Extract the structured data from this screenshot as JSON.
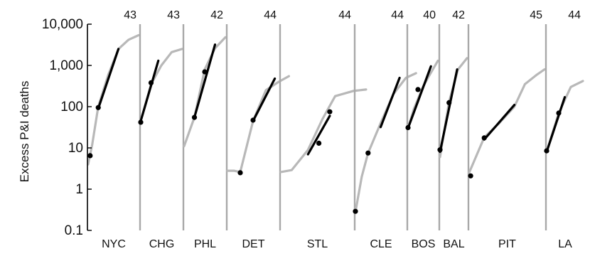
{
  "chart_data": {
    "type": "line",
    "title": "",
    "xlabel": "",
    "ylabel": "Excess P&I deaths",
    "y_scale": "log",
    "ylim": [
      0.1,
      10000
    ],
    "y_ticks": [
      0.1,
      1,
      10,
      100,
      1000,
      10000
    ],
    "y_tick_labels": [
      "0.1",
      "1",
      "10",
      "100",
      "1,000",
      "10,000"
    ],
    "grid": false,
    "legend": "none",
    "colors": {
      "epidemic_curve": "#b8b8b8",
      "fit_line": "#000000",
      "points": "#000000",
      "panel_divider": "#a8a8a8",
      "axis": "#000000"
    },
    "panels": [
      {
        "city": "NYC",
        "end_week": "43",
        "week_span": [
          38,
          43
        ],
        "curve": [
          [
            38,
            4
          ],
          [
            38.4,
            12
          ],
          [
            39,
            100
          ],
          [
            40,
            600
          ],
          [
            41,
            2500
          ],
          [
            42,
            4200
          ],
          [
            43,
            5400
          ]
        ],
        "fit": [
          [
            39,
            90
          ],
          [
            41,
            2500
          ]
        ],
        "points": [
          [
            38.2,
            6.5
          ],
          [
            39,
            95
          ]
        ]
      },
      {
        "city": "CHG",
        "end_week": "43",
        "week_span": [
          39,
          43
        ],
        "curve": [
          [
            39,
            45
          ],
          [
            40,
            350
          ],
          [
            41,
            1000
          ],
          [
            42,
            2100
          ],
          [
            43,
            2500
          ]
        ],
        "fit": [
          [
            39,
            45
          ],
          [
            40.7,
            1300
          ]
        ],
        "points": [
          [
            39,
            42
          ],
          [
            40,
            380
          ]
        ]
      },
      {
        "city": "PHL",
        "end_week": "42",
        "week_span": [
          38,
          42
        ],
        "curve": [
          [
            38,
            11
          ],
          [
            39,
            55
          ],
          [
            40,
            800
          ],
          [
            41,
            2600
          ],
          [
            42,
            4800
          ]
        ],
        "fit": [
          [
            39,
            55
          ],
          [
            41,
            3200
          ]
        ],
        "points": [
          [
            39,
            55
          ],
          [
            40,
            700
          ]
        ]
      },
      {
        "city": "DET",
        "end_week": "44",
        "week_span": [
          40,
          44
        ],
        "curve": [
          [
            40,
            2.8
          ],
          [
            40.5,
            2.8
          ],
          [
            41,
            2.6
          ],
          [
            42,
            45
          ],
          [
            43,
            250
          ],
          [
            44,
            400
          ],
          [
            44.8,
            550
          ]
        ],
        "fit": [
          [
            42,
            45
          ],
          [
            43.7,
            480
          ]
        ],
        "points": [
          [
            41,
            2.5
          ],
          [
            42,
            47
          ]
        ]
      },
      {
        "city": "STL",
        "end_week": "44",
        "week_span": [
          40,
          44
        ],
        "curve": [
          [
            40,
            2.6
          ],
          [
            40.6,
            2.9
          ],
          [
            41.5,
            9
          ],
          [
            42.3,
            50
          ],
          [
            43,
            180
          ],
          [
            44,
            240
          ],
          [
            44.7,
            260
          ]
        ],
        "fit": [
          [
            41.5,
            7
          ],
          [
            42.7,
            60
          ]
        ],
        "points": [
          [
            42.1,
            13
          ],
          [
            42.7,
            75
          ]
        ]
      },
      {
        "city": "CLE",
        "end_week": "44",
        "week_span": [
          40,
          44
        ],
        "curve": [
          [
            40,
            0.28
          ],
          [
            40.5,
            2
          ],
          [
            41,
            7.5
          ],
          [
            42,
            40
          ],
          [
            43,
            200
          ],
          [
            44,
            500
          ],
          [
            44.8,
            650
          ]
        ],
        "fit": [
          [
            42,
            32
          ],
          [
            43.5,
            500
          ]
        ],
        "points": [
          [
            40,
            0.29
          ],
          [
            41,
            7.5
          ]
        ]
      },
      {
        "city": "BOS",
        "end_week": "40",
        "week_span": [
          37,
          40
        ],
        "curve": [
          [
            37,
            30
          ],
          [
            37.6,
            90
          ],
          [
            38.5,
            300
          ],
          [
            39,
            500
          ],
          [
            40,
            1300
          ]
        ],
        "fit": [
          [
            37,
            30
          ],
          [
            39.3,
            950
          ]
        ],
        "points": [
          [
            37,
            31
          ],
          [
            38,
            260
          ]
        ]
      },
      {
        "city": "BAL",
        "end_week": "42",
        "week_span": [
          39,
          42
        ],
        "curve": [
          [
            39,
            6
          ],
          [
            40,
            130
          ],
          [
            41,
            800
          ],
          [
            42,
            1500
          ]
        ],
        "fit": [
          [
            39,
            8
          ],
          [
            40.9,
            800
          ]
        ],
        "points": [
          [
            39,
            9
          ],
          [
            40,
            125
          ]
        ]
      },
      {
        "city": "PIT",
        "end_week": "45",
        "week_span": [
          40,
          45
        ],
        "curve": [
          [
            40,
            2.5
          ],
          [
            41,
            18
          ],
          [
            42,
            40
          ],
          [
            43,
            100
          ],
          [
            43.7,
            350
          ],
          [
            44.5,
            600
          ],
          [
            45,
            800
          ]
        ],
        "fit": [
          [
            41,
            16
          ],
          [
            43,
            110
          ]
        ],
        "points": [
          [
            40.1,
            2.1
          ],
          [
            41,
            17.5
          ]
        ]
      },
      {
        "city": "LA",
        "end_week": "44",
        "week_span": [
          41,
          44
        ],
        "curve": [
          [
            41,
            8
          ],
          [
            42,
            70
          ],
          [
            43,
            300
          ],
          [
            44,
            420
          ]
        ],
        "fit": [
          [
            41,
            8
          ],
          [
            42.5,
            170
          ]
        ],
        "points": [
          [
            41,
            8.5
          ],
          [
            42,
            70
          ]
        ]
      }
    ]
  }
}
